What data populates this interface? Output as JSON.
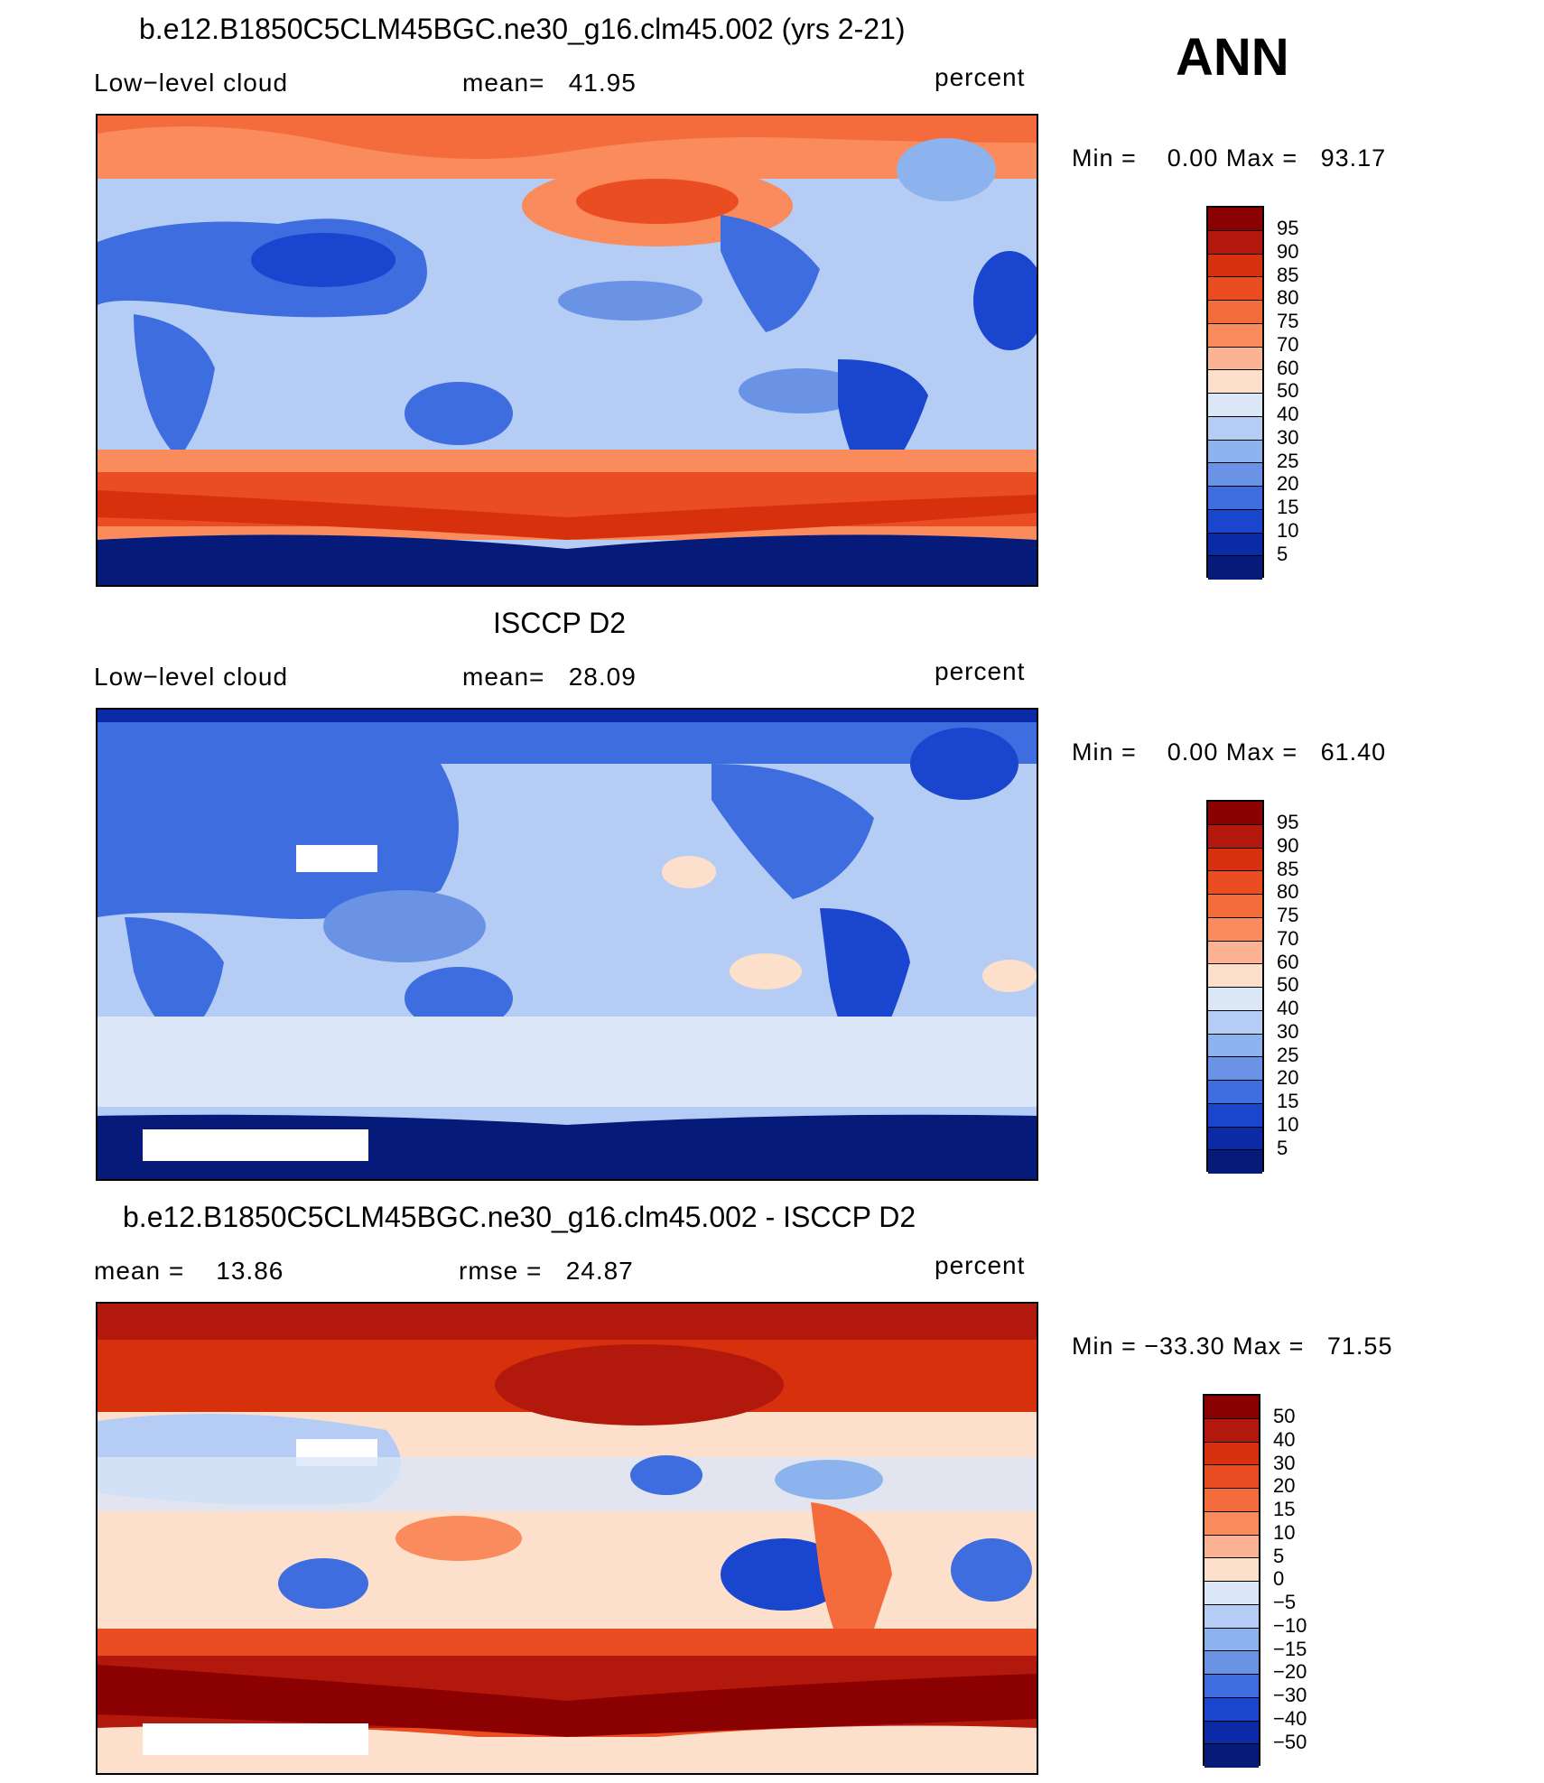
{
  "season": "ANN",
  "panels": [
    {
      "title": "b.e12.B1850C5CLM45BGC.ne30_g16.clm45.002 (yrs 2-21)",
      "left_label": "Low−level cloud",
      "center_label": "mean=   41.95",
      "units": "percent",
      "minmax": "Min =    0.00 Max =   93.17",
      "colorbar": {
        "labels": [
          "95",
          "90",
          "85",
          "80",
          "75",
          "70",
          "60",
          "50",
          "40",
          "30",
          "25",
          "20",
          "15",
          "10",
          "5"
        ],
        "colors": [
          "#8b0000",
          "#b2180b",
          "#d7300d",
          "#ea4d21",
          "#f56c3c",
          "#f98b5c",
          "#fbb393",
          "#fde0cc",
          "#dbe6f7",
          "#b5cdf4",
          "#8db3ef",
          "#6a93e6",
          "#3d6ddf",
          "#1a45cf",
          "#0a2aa8",
          "#061a7a"
        ]
      }
    },
    {
      "title": "ISCCP D2",
      "left_label": "Low−level cloud",
      "center_label": "mean=   28.09",
      "units": "percent",
      "minmax": "Min =    0.00 Max =   61.40",
      "colorbar": {
        "labels": [
          "95",
          "90",
          "85",
          "80",
          "75",
          "70",
          "60",
          "50",
          "40",
          "30",
          "25",
          "20",
          "15",
          "10",
          "5"
        ],
        "colors": [
          "#8b0000",
          "#b2180b",
          "#d7300d",
          "#ea4d21",
          "#f56c3c",
          "#f98b5c",
          "#fbb393",
          "#fde0cc",
          "#dbe6f7",
          "#b5cdf4",
          "#8db3ef",
          "#6a93e6",
          "#3d6ddf",
          "#1a45cf",
          "#0a2aa8",
          "#061a7a"
        ]
      }
    },
    {
      "title": "b.e12.B1850C5CLM45BGC.ne30_g16.clm45.002 - ISCCP D2",
      "left_label": "mean =    13.86",
      "center_label": "rmse =   24.87",
      "units": "percent",
      "minmax": "Min = −33.30 Max =   71.55",
      "colorbar": {
        "labels": [
          "50",
          "40",
          "30",
          "20",
          "15",
          "10",
          "5",
          "0",
          "−5",
          "−10",
          "−15",
          "−20",
          "−30",
          "−40",
          "−50"
        ],
        "colors": [
          "#8b0000",
          "#b2180b",
          "#d7300d",
          "#ea4d21",
          "#f56c3c",
          "#f98b5c",
          "#fbb393",
          "#fde0cc",
          "#dbe6f7",
          "#b5cdf4",
          "#8db3ef",
          "#6a93e6",
          "#3d6ddf",
          "#1a45cf",
          "#0a2aa8",
          "#061a7a"
        ]
      }
    }
  ]
}
